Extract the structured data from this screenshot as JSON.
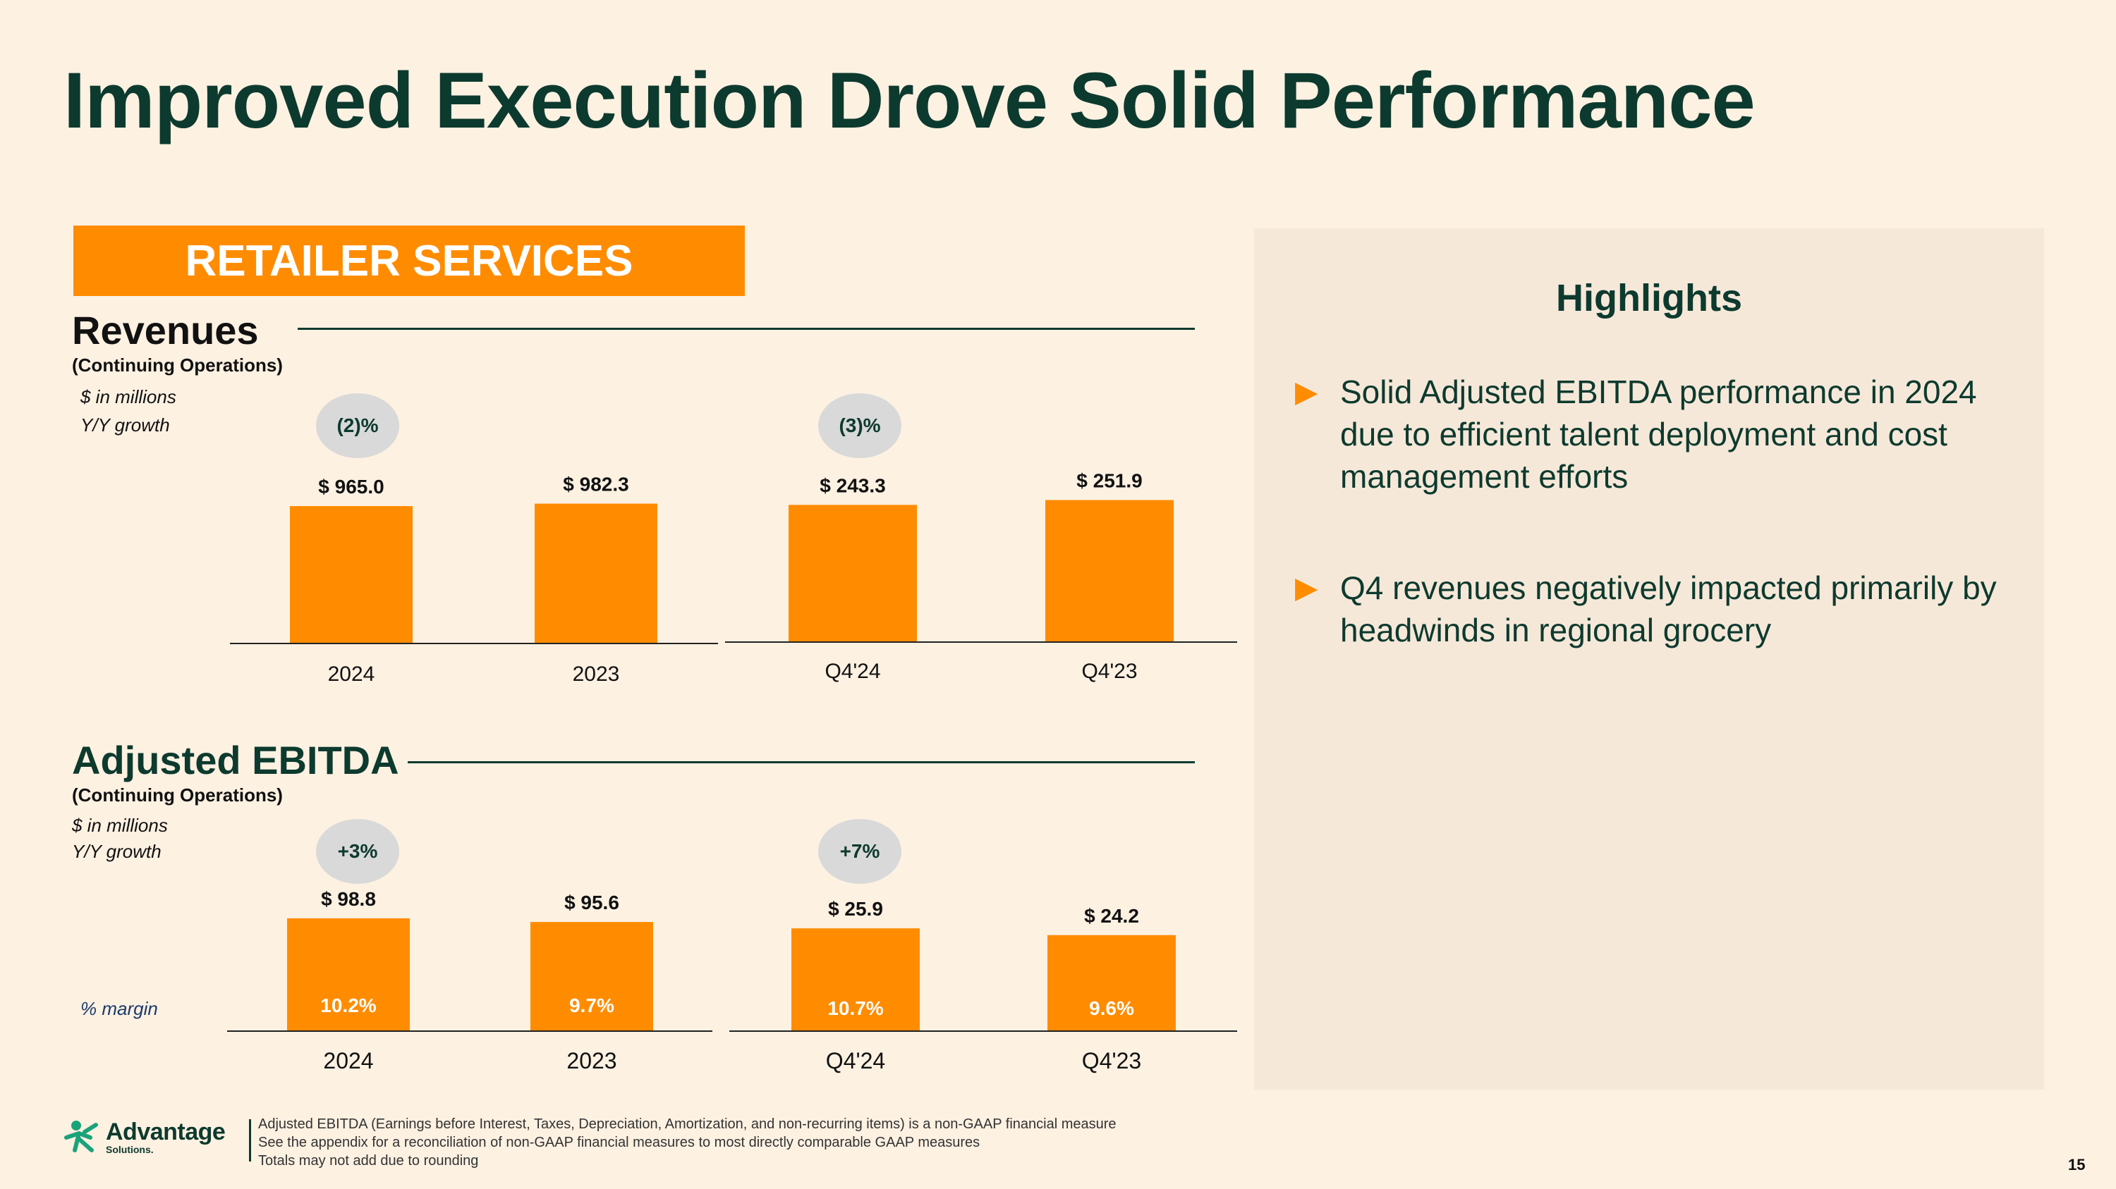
{
  "title": "Improved Execution Drove Solid Performance",
  "banner": "RETAILER SERVICES",
  "colors": {
    "bar": "#ff8c00",
    "text_dark": "#0d3a2e",
    "background": "#fdf1e2",
    "panel": "#f6e8d9"
  },
  "revenues": {
    "title": "Revenues",
    "subtitle": "(Continuing Operations)",
    "unit_note": "$ in millions",
    "growth_note": "Y/Y growth",
    "growth_badges": [
      "(2)%",
      "(3)%"
    ]
  },
  "ebitda": {
    "title": "Adjusted EBITDA",
    "subtitle": "(Continuing Operations)",
    "unit_note": "$ in millions",
    "growth_note": "Y/Y growth",
    "margin_note": "% margin",
    "growth_badges": [
      "+3%",
      "+7%"
    ]
  },
  "chart_data": [
    {
      "type": "bar",
      "title": "Revenues - Annual",
      "categories": [
        "2024",
        "2023"
      ],
      "values": [
        965.0,
        982.3
      ],
      "value_labels": [
        "$ 965.0",
        "$ 982.3"
      ],
      "ylim": [
        0,
        1000
      ]
    },
    {
      "type": "bar",
      "title": "Revenues - Quarterly",
      "categories": [
        "Q4'24",
        "Q4'23"
      ],
      "values": [
        243.3,
        251.9
      ],
      "value_labels": [
        "$ 243.3",
        "$ 251.9"
      ],
      "ylim": [
        0,
        260
      ]
    },
    {
      "type": "bar",
      "title": "Adjusted EBITDA - Annual",
      "categories": [
        "2024",
        "2023"
      ],
      "values": [
        98.8,
        95.6
      ],
      "value_labels": [
        "$ 98.8",
        "$ 95.6"
      ],
      "margins": [
        "10.2%",
        "9.7%"
      ],
      "ylim": [
        0,
        100
      ]
    },
    {
      "type": "bar",
      "title": "Adjusted EBITDA - Quarterly",
      "categories": [
        "Q4'24",
        "Q4'23"
      ],
      "values": [
        25.9,
        24.2
      ],
      "value_labels": [
        "$ 25.9",
        "$ 24.2"
      ],
      "margins": [
        "10.7%",
        "9.6%"
      ],
      "ylim": [
        0,
        27
      ]
    }
  ],
  "highlights": {
    "title": "Highlights",
    "items": [
      "Solid Adjusted EBITDA performance in 2024 due to efficient talent deployment and cost management efforts",
      "Q4 revenues negatively impacted primarily by headwinds in regional grocery"
    ]
  },
  "logo": {
    "name": "Advantage",
    "sub": "Solutions."
  },
  "footnotes": [
    "Adjusted EBITDA (Earnings before Interest, Taxes, Depreciation, Amortization, and non-recurring items) is a non-GAAP financial measure",
    "See the appendix for a reconciliation of non-GAAP financial measures to most directly comparable GAAP measures",
    "Totals may not add due to rounding"
  ],
  "page_number": "15"
}
